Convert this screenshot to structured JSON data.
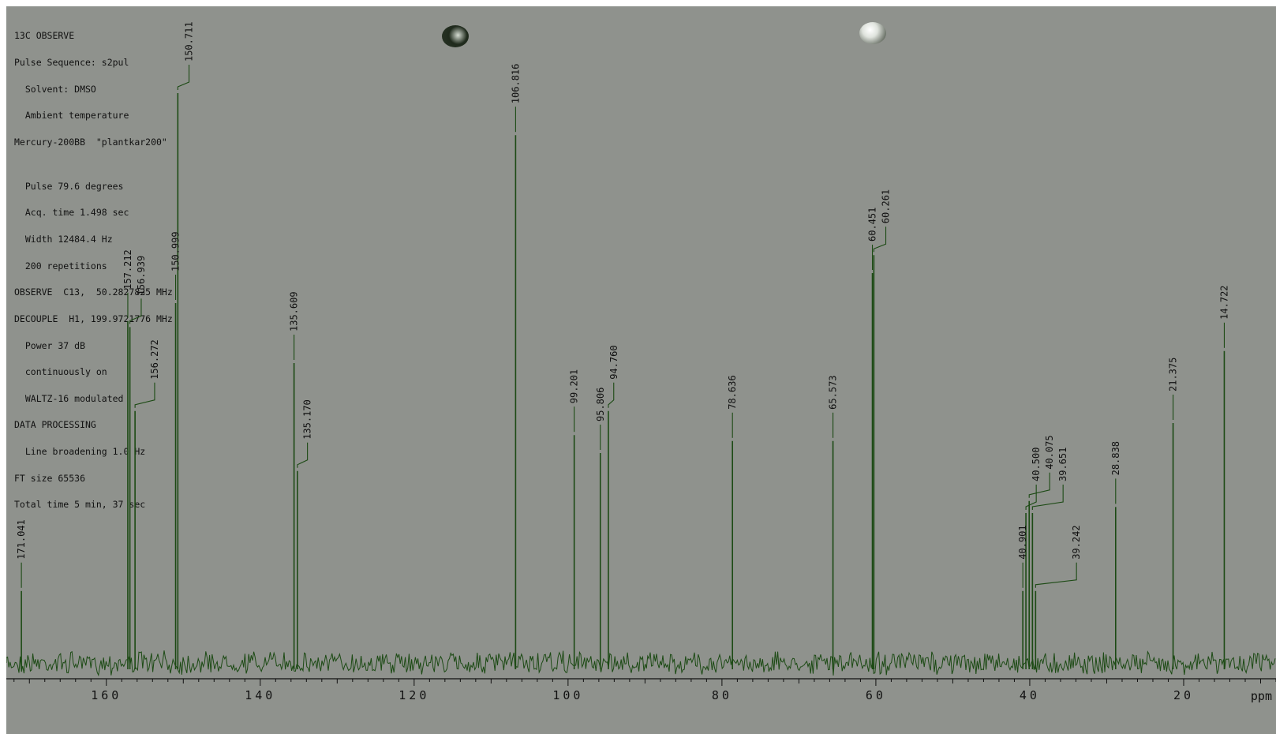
{
  "header": {
    "title": "13C OBSERVE",
    "params": [
      "Pulse Sequence: s2pul",
      "  Solvent: DMSO",
      "  Ambient temperature",
      "Mercury-200BB  \"plantkar200\"",
      "",
      "  Pulse 79.6 degrees",
      "  Acq. time 1.498 sec",
      "  Width 12484.4 Hz",
      "  200 repetitions",
      "OBSERVE  C13,  50.2827825 MHz",
      "DECOUPLE  H1, 199.9721776 MHz",
      "  Power 37 dB",
      "  continuously on",
      "  WALTZ-16 modulated",
      "DATA PROCESSING",
      "  Line broadening 1.0 Hz",
      "FT size 65536",
      "Total time 5 min, 37 sec"
    ]
  },
  "colors": {
    "paper": "#8f928d",
    "trace": "#1c4a14",
    "text": "#111111"
  },
  "chart_data": {
    "type": "line",
    "xlabel": "ppm",
    "xlim": [
      173,
      8
    ],
    "x_ticks": [
      160,
      140,
      120,
      100,
      80,
      60,
      40,
      20
    ],
    "x_tick_labels": [
      "160",
      "140",
      "120",
      "100",
      "80",
      "60",
      "40",
      "20"
    ],
    "y_axis_shown": false,
    "grid": false,
    "peaks": [
      {
        "ppm": 171.041,
        "label": "171.041",
        "height": 0.12
      },
      {
        "ppm": 157.212,
        "label": "157.212",
        "height": 0.57
      },
      {
        "ppm": 156.939,
        "label": "156.939",
        "height": 0.56
      },
      {
        "ppm": 156.272,
        "label": "156.272",
        "height": 0.42
      },
      {
        "ppm": 150.999,
        "label": "150.999",
        "height": 0.6
      },
      {
        "ppm": 150.711,
        "label": "150.711",
        "height": 0.95
      },
      {
        "ppm": 135.609,
        "label": "135.609",
        "height": 0.5
      },
      {
        "ppm": 135.17,
        "label": "135.170",
        "height": 0.32
      },
      {
        "ppm": 106.816,
        "label": "106.816",
        "height": 0.88
      },
      {
        "ppm": 99.201,
        "label": "99.201",
        "height": 0.38
      },
      {
        "ppm": 95.806,
        "label": "95.806",
        "height": 0.35
      },
      {
        "ppm": 94.76,
        "label": "94.760",
        "height": 0.42
      },
      {
        "ppm": 78.636,
        "label": "78.636",
        "height": 0.37
      },
      {
        "ppm": 65.573,
        "label": "65.573",
        "height": 0.37
      },
      {
        "ppm": 60.451,
        "label": "60.451",
        "height": 0.65
      },
      {
        "ppm": 60.261,
        "label": "60.261",
        "height": 0.68
      },
      {
        "ppm": 40.901,
        "label": "40.901",
        "height": 0.12
      },
      {
        "ppm": 40.5,
        "label": "40.500",
        "height": 0.25
      },
      {
        "ppm": 40.075,
        "label": "40.075",
        "height": 0.27
      },
      {
        "ppm": 39.651,
        "label": "39.651",
        "height": 0.25
      },
      {
        "ppm": 39.242,
        "label": "39.242",
        "height": 0.12
      },
      {
        "ppm": 28.838,
        "label": "28.838",
        "height": 0.26
      },
      {
        "ppm": 21.375,
        "label": "21.375",
        "height": 0.4
      },
      {
        "ppm": 14.722,
        "label": "14.722",
        "height": 0.52
      }
    ]
  }
}
